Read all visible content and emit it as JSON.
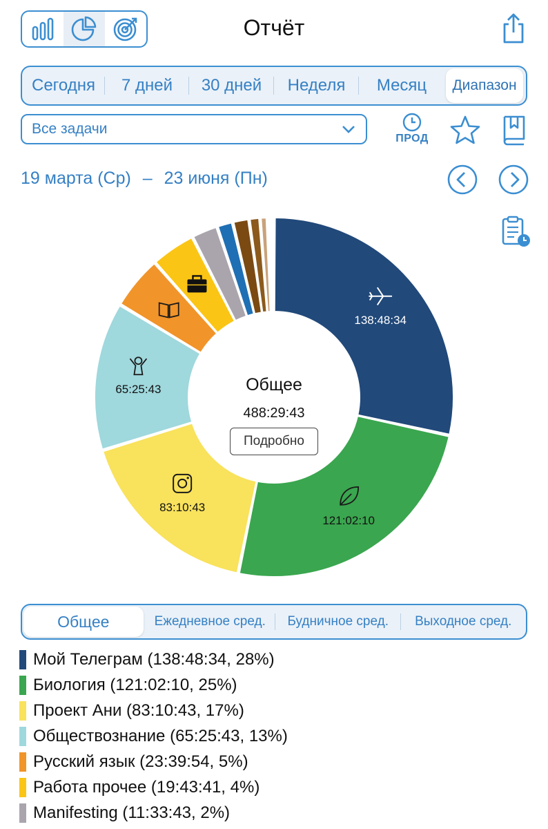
{
  "header": {
    "title": "Отчёт",
    "view_modes": [
      {
        "name": "bar-chart-view",
        "icon": "bar-chart-icon",
        "active": false
      },
      {
        "name": "pie-chart-view",
        "icon": "pie-chart-icon",
        "active": true
      },
      {
        "name": "target-view",
        "icon": "target-icon",
        "active": false
      }
    ],
    "share_icon": "share-icon"
  },
  "period_tabs": [
    {
      "label": "Сегодня",
      "active": false
    },
    {
      "label": "7 дней",
      "active": false
    },
    {
      "label": "30 дней",
      "active": false
    },
    {
      "label": "Неделя",
      "active": false
    },
    {
      "label": "Месяц",
      "active": false
    },
    {
      "label": "Диапазон",
      "active": true
    }
  ],
  "filter": {
    "selected": "Все задачи"
  },
  "prod": {
    "label": "ПРОД"
  },
  "date_range": {
    "start": "19 марта (Ср)",
    "separator": "–",
    "end": "23 июня (Пн)"
  },
  "center": {
    "title": "Общее",
    "total": "488:29:43",
    "details_label": "Подробно"
  },
  "stat_tabs": [
    {
      "label": "Общее",
      "active": true
    },
    {
      "label": "Ежедневное сред.",
      "active": false
    },
    {
      "label": "Будничное сред.",
      "active": false
    },
    {
      "label": "Выходное сред.",
      "active": false
    }
  ],
  "legend": [
    {
      "text": "Мой Телеграм (138:48:34, 28%)",
      "color": "#21497a"
    },
    {
      "text": "Биология (121:02:10, 25%)",
      "color": "#3aa64f"
    },
    {
      "text": "Проект Ани (83:10:43, 17%)",
      "color": "#f9e25c"
    },
    {
      "text": "Обществознание (65:25:43, 13%)",
      "color": "#9fd8dd"
    },
    {
      "text": "Русский язык (23:39:54, 5%)",
      "color": "#f1942a"
    },
    {
      "text": "Работа прочее (19:43:41, 4%)",
      "color": "#fbc515"
    },
    {
      "text": "Manifesting  (11:33:43, 2%)",
      "color": "#aaa5ad"
    }
  ],
  "chart_data": {
    "type": "pie",
    "total": "488:29:43",
    "slices": [
      {
        "label": "Мой Телеграм",
        "value": 138.81,
        "time": "138:48:34",
        "color": "#21497a",
        "icon": "airplane-icon",
        "show_label": true
      },
      {
        "label": "Биология",
        "value": 121.04,
        "time": "121:02:10",
        "color": "#3aa64f",
        "icon": "leaf-icon",
        "show_label": true
      },
      {
        "label": "Проект Ани",
        "value": 83.18,
        "time": "83:10:43",
        "color": "#f9e25c",
        "icon": "instagram-icon",
        "show_label": true
      },
      {
        "label": "Обществознание",
        "value": 65.43,
        "time": "65:25:43",
        "color": "#9fd8dd",
        "icon": "person-icon",
        "show_label": true
      },
      {
        "label": "Русский язык",
        "value": 23.67,
        "time": "23:39:54",
        "color": "#f1942a",
        "icon": "book-icon",
        "show_label": false
      },
      {
        "label": "Работа прочее",
        "value": 19.73,
        "time": "19:43:41",
        "color": "#fbc515",
        "icon": "briefcase-icon",
        "show_label": false
      },
      {
        "label": "Manifesting",
        "value": 11.56,
        "time": "11:33:43",
        "color": "#aaa5ad",
        "icon": "",
        "show_label": false
      },
      {
        "label": "",
        "value": 7.0,
        "color": "#1f6fb4",
        "icon": "",
        "show_label": false
      },
      {
        "label": "",
        "value": 7.2,
        "color": "#7a4a12",
        "icon": "",
        "show_label": false
      },
      {
        "label": "",
        "value": 4.8,
        "color": "#8b5a1c",
        "icon": "",
        "show_label": false
      },
      {
        "label": "",
        "value": 3.2,
        "color": "#c9a27a",
        "icon": "",
        "show_label": false
      },
      {
        "label": "",
        "value": 1.5,
        "color": "#6aa0d0",
        "icon": "",
        "show_label": false
      },
      {
        "label": "",
        "value": 1.4,
        "color": "#2f5f99",
        "icon": "",
        "show_label": false
      }
    ]
  }
}
